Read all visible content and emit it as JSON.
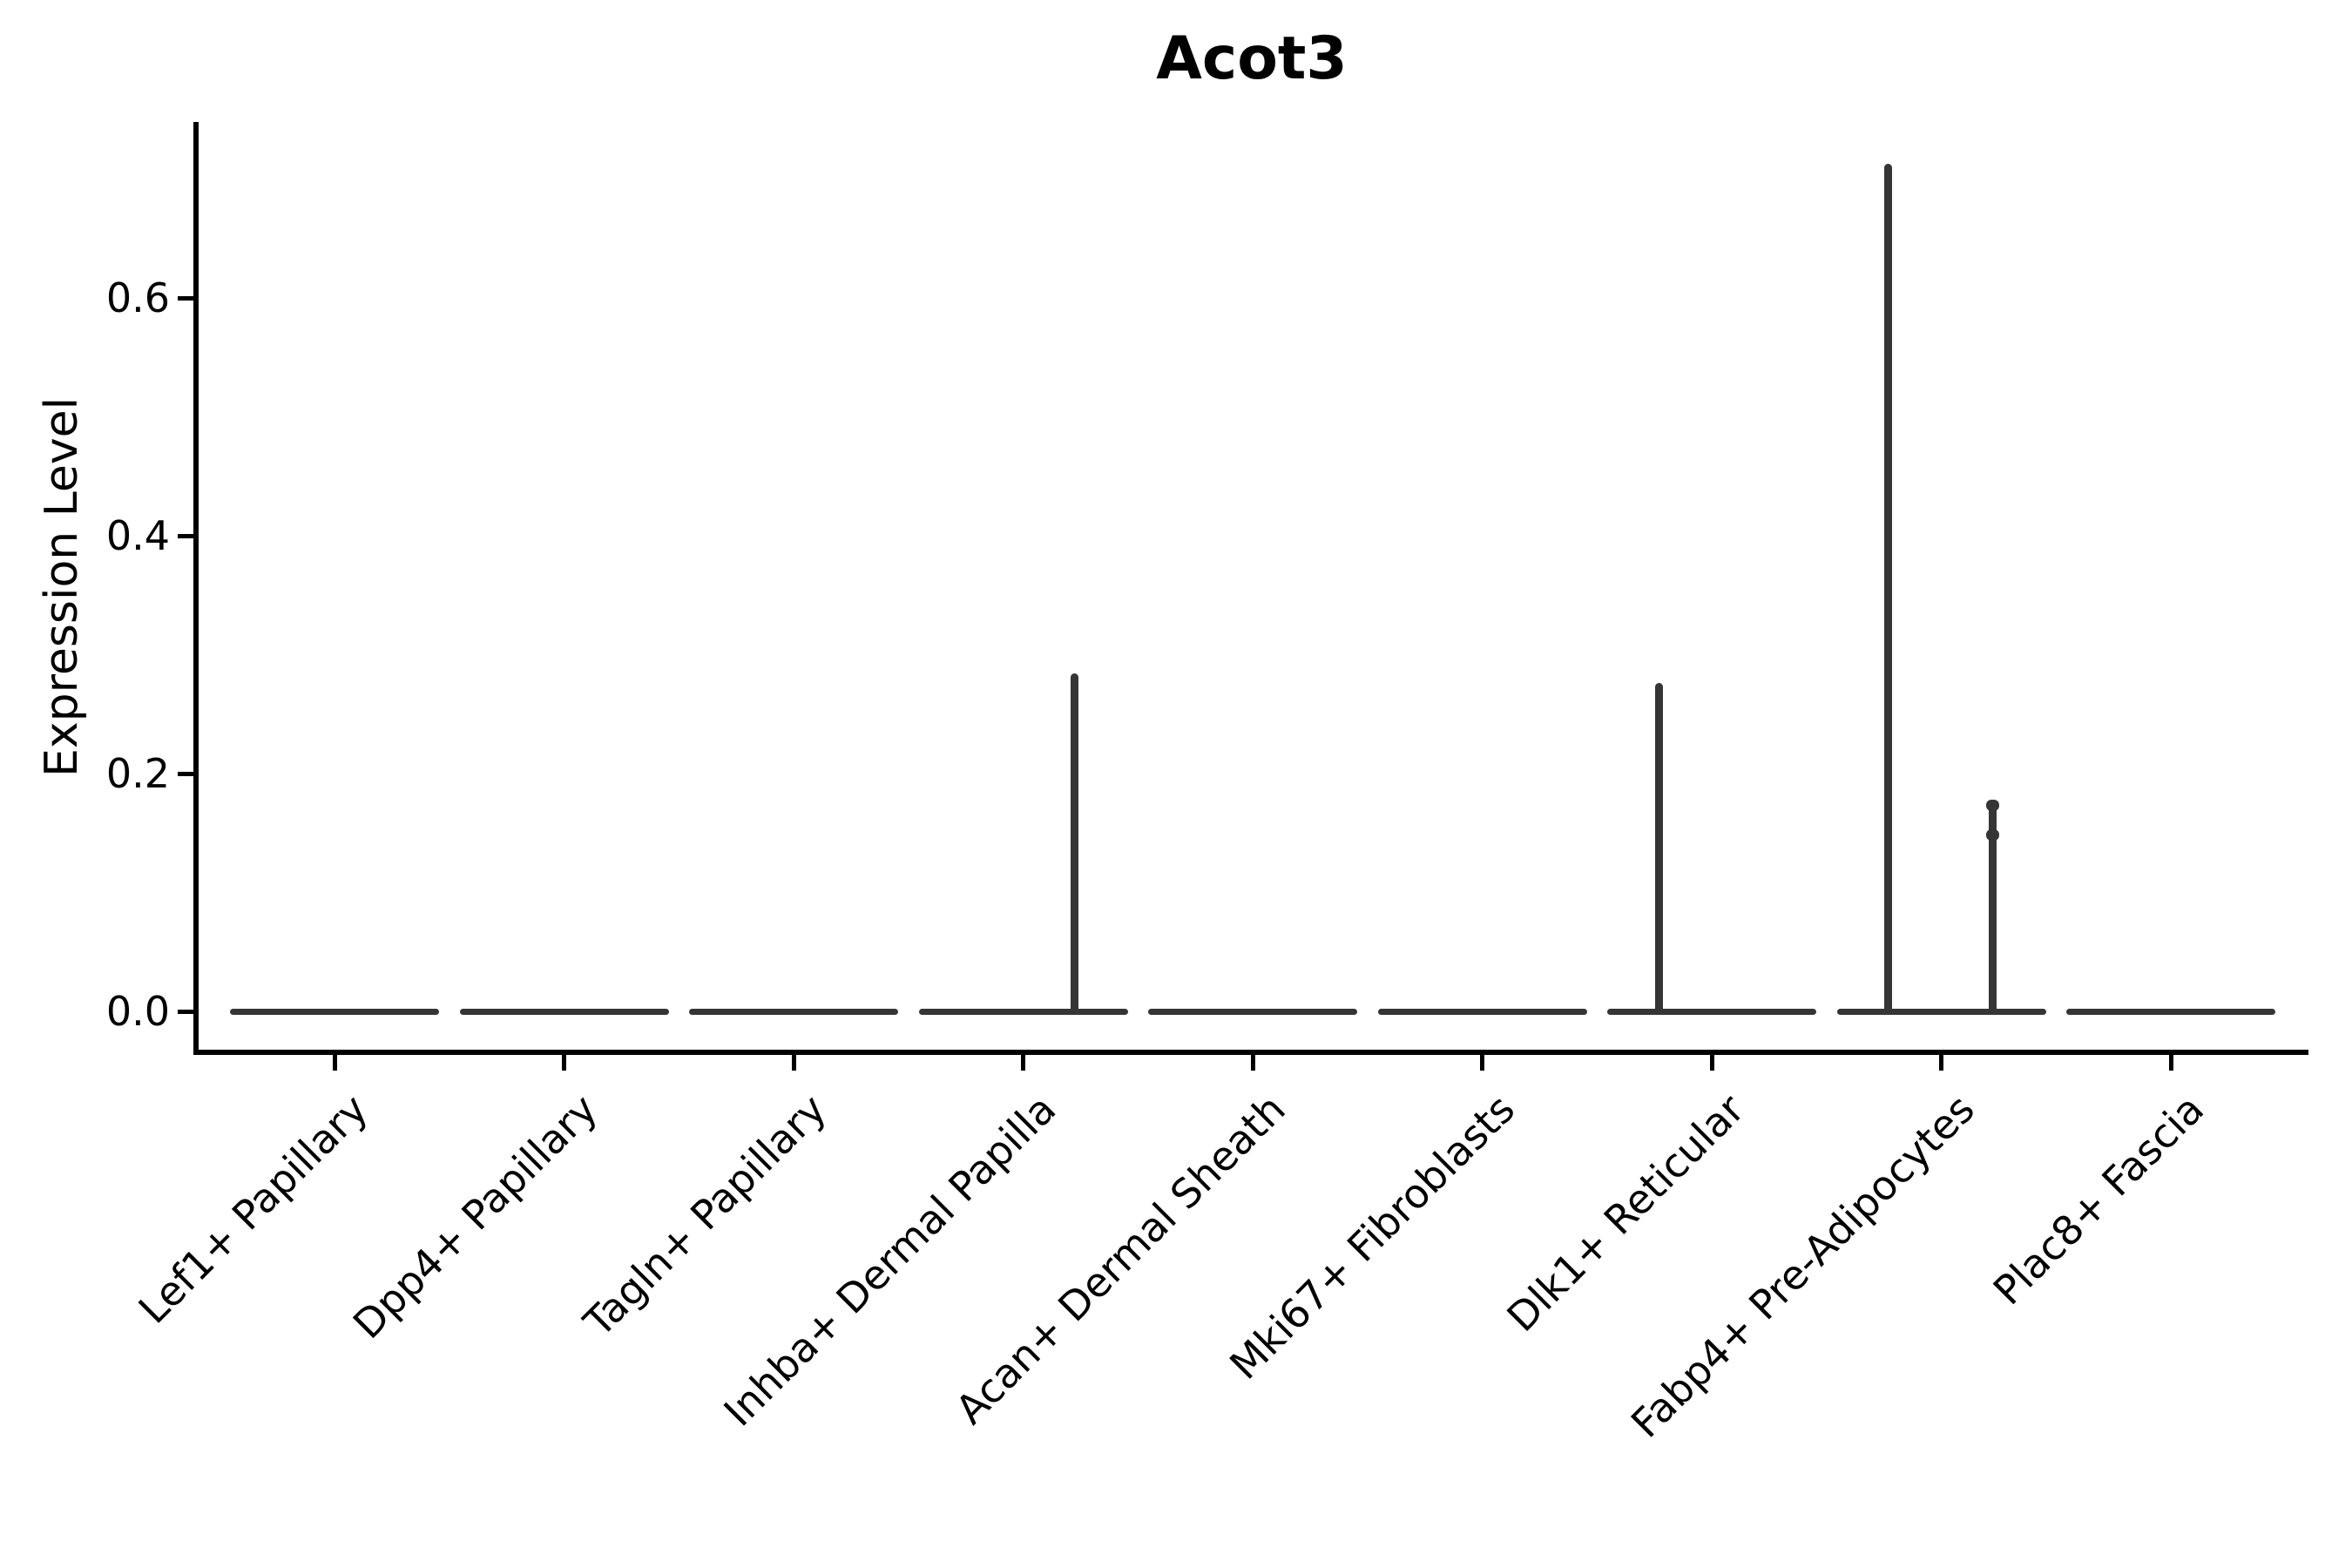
{
  "title": "Acot3",
  "ylabel": "Expression Level",
  "chart_data": {
    "type": "violin",
    "title": "Acot3",
    "xlabel": "",
    "ylabel": "Expression Level",
    "ylim": [
      -0.035,
      0.755
    ],
    "yticks": [
      0.0,
      0.2,
      0.4,
      0.6
    ],
    "ytick_labels": [
      "0.0",
      "0.2",
      "0.4",
      "0.6"
    ],
    "grid": false,
    "legend": "none",
    "x_tick_rotation": 45,
    "violin_color": "#353535",
    "axis_color": "#000000",
    "categories": [
      "Lef1+ Papillary",
      "Dpp4+ Papillary",
      "Tagln+ Papillary",
      "Inhba+ Dermal Papilla",
      "Acan+ Dermal Sheath",
      "Mki67+ Fibroblasts",
      "Dlk1+ Reticular",
      "Fabp4+ Pre-Adipocytes",
      "Plac8+ Fascia"
    ],
    "violins": [
      {
        "category": "Lef1+ Papillary",
        "max_expression": 0.0,
        "spikes": []
      },
      {
        "category": "Dpp4+ Papillary",
        "max_expression": 0.0,
        "spikes": []
      },
      {
        "category": "Tagln+ Papillary",
        "max_expression": 0.0,
        "spikes": []
      },
      {
        "category": "Inhba+ Dermal Papilla",
        "max_expression": 0.28,
        "spikes": [
          {
            "offset_frac": 0.225,
            "value": 0.284,
            "knobs": []
          }
        ]
      },
      {
        "category": "Acan+ Dermal Sheath",
        "max_expression": 0.0,
        "spikes": []
      },
      {
        "category": "Mki67+ Fibroblasts",
        "max_expression": 0.0,
        "spikes": []
      },
      {
        "category": "Dlk1+ Reticular",
        "max_expression": 0.28,
        "spikes": [
          {
            "offset_frac": -0.228,
            "value": 0.276,
            "knobs": []
          }
        ]
      },
      {
        "category": "Fabp4+ Pre-Adipocytes",
        "max_expression": 0.71,
        "spikes": [
          {
            "offset_frac": -0.231,
            "value": 0.713,
            "knobs": []
          },
          {
            "offset_frac": 0.224,
            "value": 0.178,
            "knobs": [
              0.178,
              0.153
            ]
          }
        ]
      },
      {
        "category": "Plac8+ Fascia",
        "max_expression": 0.0,
        "spikes": []
      }
    ]
  }
}
